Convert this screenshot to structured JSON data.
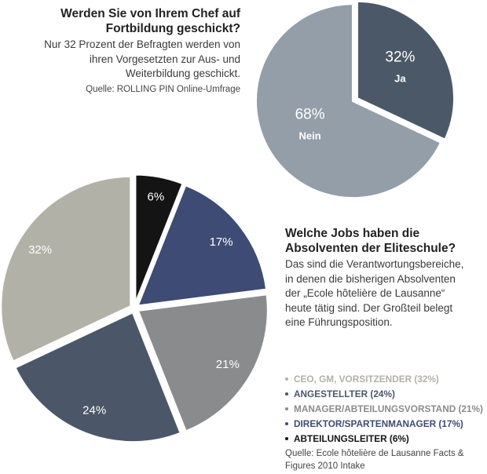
{
  "top": {
    "title": "Werden Sie von Ihrem Chef auf Fortbildung geschickt?",
    "body": "Nur 32 Prozent der Befragten werden von ihren Vorgesetzten zur Aus- und Weiterbildung geschickt.",
    "source": "Quelle: ROLLING PIN Online-Umfrage"
  },
  "middle": {
    "title": "Welche Jobs haben die Absolventen der Eliteschule?",
    "body": "Das sind die Verantwortungsbereiche, in denen die bisherigen Absolventen der „Ecole hôtelière de Lausanne“ heute tätig sind. Der Großteil belegt eine Führungsposition."
  },
  "legend": [
    {
      "label": "CEO, GM, VORSITZENDER (32%)",
      "color": "#b2b1a7"
    },
    {
      "label": "ANGESTELLTER (24%)",
      "color": "#4b5769"
    },
    {
      "label": "MANAGER/ABTEILUNGSVORSTAND (21%)",
      "color": "#8a8b8d"
    },
    {
      "label": "DIREKTOR/SPARTENMANAGER (17%)",
      "color": "#3e4b74"
    },
    {
      "label": "ABTEILUNGSLEITER (6%)",
      "color": "#141414"
    }
  ],
  "bottom_source": "Quelle: Ecole hôtelière de Lausanne Facts & Figures 2010 Intake",
  "chart_data": [
    {
      "type": "pie",
      "title": "Werden Sie von Ihrem Chef auf Fortbildung geschickt?",
      "slices": [
        {
          "value": 32,
          "label": "32%",
          "name": "Ja",
          "color": "#4b5867"
        },
        {
          "value": 68,
          "label": "68%",
          "name": "Nein",
          "color": "#949ea8"
        }
      ]
    },
    {
      "type": "pie",
      "title": "Welche Jobs haben die Absolventen der Eliteschule?",
      "slices": [
        {
          "value": 6,
          "label": "6%",
          "color": "#141414"
        },
        {
          "value": 17,
          "label": "17%",
          "color": "#3e4b74"
        },
        {
          "value": 21,
          "label": "21%",
          "color": "#8a8b8d"
        },
        {
          "value": 24,
          "label": "24%",
          "color": "#4b5769"
        },
        {
          "value": 32,
          "label": "32%",
          "color": "#b2b1a7"
        }
      ]
    }
  ]
}
